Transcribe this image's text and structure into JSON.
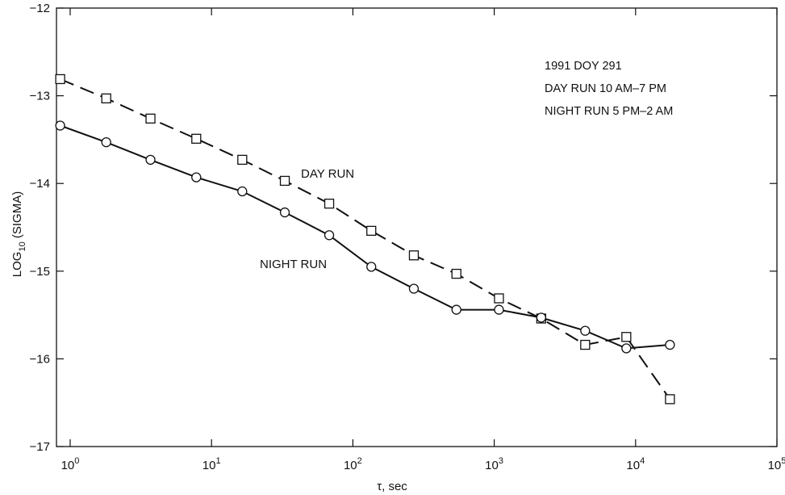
{
  "chart_data": {
    "type": "line",
    "title": "",
    "xlabel": "τ, sec",
    "ylabel": {
      "base": "LOG",
      "sub": "10",
      "rest": " (SIGMA)"
    },
    "x_scale": "log",
    "xlim": [
      0.8,
      100000
    ],
    "ylim": [
      -17,
      -12
    ],
    "grid": false,
    "x_ticks": [
      {
        "value": 1,
        "base": "10",
        "exp": "0"
      },
      {
        "value": 10,
        "base": "10",
        "exp": "1"
      },
      {
        "value": 100,
        "base": "10",
        "exp": "2"
      },
      {
        "value": 1000,
        "base": "10",
        "exp": "3"
      },
      {
        "value": 10000,
        "base": "10",
        "exp": "4"
      },
      {
        "value": 100000,
        "base": "10",
        "exp": "5"
      }
    ],
    "y_ticks": [
      {
        "value": -12,
        "label": "−12"
      },
      {
        "value": -13,
        "label": "−13"
      },
      {
        "value": -14,
        "label": "−14"
      },
      {
        "value": -15,
        "label": "−15"
      },
      {
        "value": -16,
        "label": "−16"
      },
      {
        "value": -17,
        "label": "−17"
      }
    ],
    "series": [
      {
        "name": "DAY RUN",
        "style": "dashed",
        "marker": "square",
        "color": "#111111",
        "x": [
          0.85,
          1.8,
          3.7,
          7.8,
          16.5,
          33,
          68,
          135,
          270,
          540,
          1080,
          2150,
          4400,
          8600,
          17500
        ],
        "y": [
          -12.81,
          -13.03,
          -13.26,
          -13.49,
          -13.73,
          -13.97,
          -14.23,
          -14.54,
          -14.82,
          -15.03,
          -15.31,
          -15.54,
          -15.84,
          -15.75,
          -16.46
        ]
      },
      {
        "name": "NIGHT RUN",
        "style": "solid",
        "marker": "circle",
        "color": "#111111",
        "x": [
          0.85,
          1.8,
          3.7,
          7.8,
          16.5,
          33,
          68,
          135,
          270,
          540,
          1080,
          2150,
          4400,
          8600,
          17500
        ],
        "y": [
          -13.34,
          -13.53,
          -13.73,
          -13.93,
          -14.09,
          -14.33,
          -14.59,
          -14.95,
          -15.2,
          -15.44,
          -15.44,
          -15.53,
          -15.68,
          -15.88,
          -15.84
        ]
      }
    ],
    "series_labels": [
      "DAY RUN",
      "NIGHT RUN"
    ],
    "annotation_lines": [
      "1991 DOY 291",
      "DAY RUN 10 AM–7 PM",
      "NIGHT RUN 5 PM–2 AM"
    ]
  }
}
